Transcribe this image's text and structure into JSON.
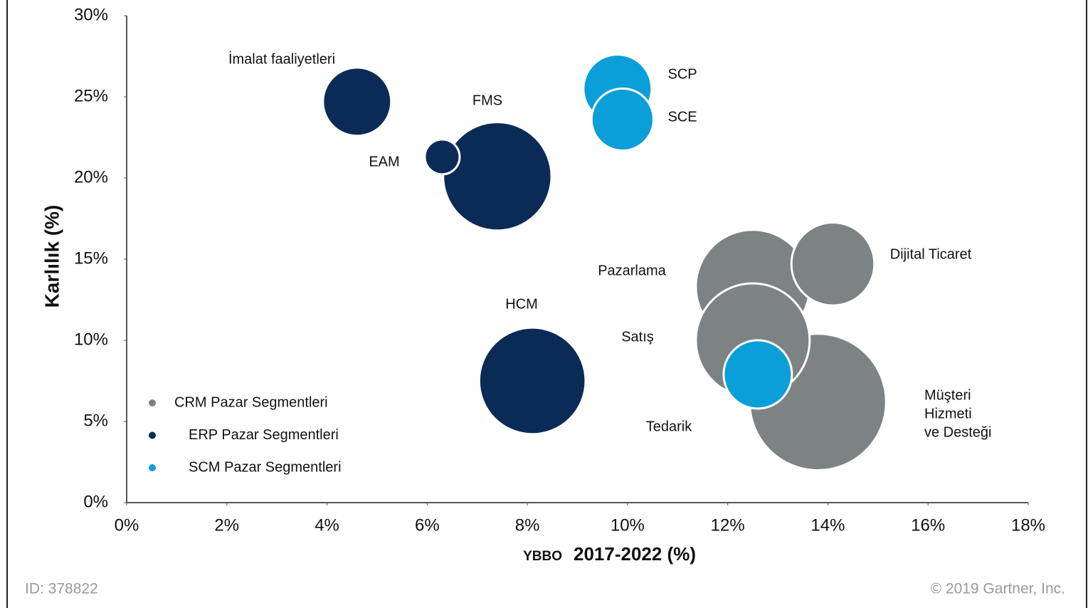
{
  "chart_data": {
    "type": "bubble",
    "y_label": "Karlılık (%)",
    "x_label_prefix": "YBBO",
    "x_label": "2017-2022 (%)",
    "xlim": [
      0,
      18
    ],
    "xticks": [
      {
        "value": 0,
        "label": "0%"
      },
      {
        "value": 2,
        "label": "2%"
      },
      {
        "value": 4,
        "label": "4%"
      },
      {
        "value": 6,
        "label": "6%"
      },
      {
        "value": 8,
        "label": "8%"
      },
      {
        "value": 10,
        "label": "10%"
      },
      {
        "value": 12,
        "label": "12%"
      },
      {
        "value": 14,
        "label": "14%"
      },
      {
        "value": 16,
        "label": "16%"
      },
      {
        "value": 18,
        "label": "18%"
      }
    ],
    "ylim": [
      0,
      30
    ],
    "yticks": [
      {
        "value": 0,
        "label": "0%"
      },
      {
        "value": 5,
        "label": "5%"
      },
      {
        "value": 10,
        "label": "10%"
      },
      {
        "value": 15,
        "label": "15%"
      },
      {
        "value": 20,
        "label": "20%"
      },
      {
        "value": 25,
        "label": "25%"
      },
      {
        "value": 30,
        "label": "30%"
      }
    ],
    "legend": "lower left",
    "series": [
      {
        "name": "CRM Pazar Segmentleri",
        "color": "#7d8284",
        "labels": [
          [
            "Pazarlama"
          ],
          [
            "Dijital Ticaret"
          ],
          [
            "Müşteri",
            "Hizmeti",
            "ve Desteği"
          ],
          [
            "Satış"
          ]
        ],
        "x": [
          12.5,
          14.1,
          13.8,
          12.5
        ],
        "values": [
          13.3,
          14.7,
          6.2,
          10.0
        ],
        "sizes": [
          64,
          34,
          92,
          64
        ]
      },
      {
        "name": "ERP Pazar Segmentleri",
        "color": "#0b2b57",
        "labels": [
          [
            "İmalat faaliyetleri"
          ],
          [
            "FMS"
          ],
          [
            "EAM"
          ],
          [
            "HCM"
          ]
        ],
        "x": [
          4.6,
          7.4,
          6.3,
          8.1
        ],
        "values": [
          24.7,
          20.1,
          21.3,
          7.5
        ],
        "sizes": [
          23,
          58,
          6,
          56
        ]
      },
      {
        "name": "SCM Pazar Segmentleri",
        "color": "#0a9fd8",
        "labels": [
          [
            "SCP"
          ],
          [
            "SCE"
          ],
          [
            "Tedarik"
          ]
        ],
        "x": [
          9.8,
          9.9,
          12.6
        ],
        "values": [
          25.5,
          23.6,
          7.9
        ],
        "sizes": [
          23,
          19,
          23
        ]
      }
    ],
    "footer_left": "ID: 378822",
    "footer_right": "© 2019 Gartner, Inc."
  }
}
